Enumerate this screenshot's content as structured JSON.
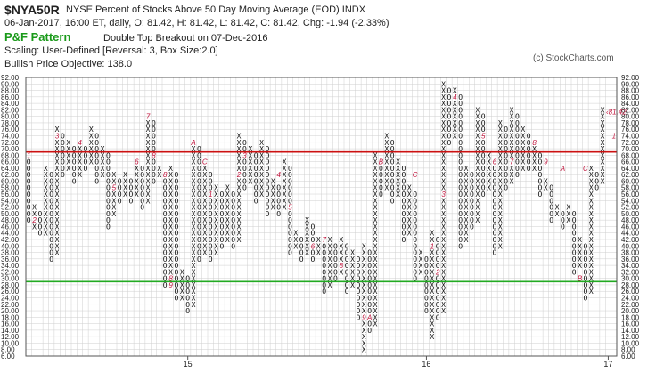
{
  "header": {
    "symbol": "$NYA50R",
    "description": "NYSE Percent of Stocks Above 50 Day Moving Average (EOD)  INDX",
    "stats": "06-Jan-2017, 16:00 ET, daily, O: 81.42, H: 81.42, L: 81.42, C: 81.42, Chg: -1.94 (-2.33%)",
    "pf_title": "P&F Pattern",
    "pattern": "Double Top Breakout on 07-Dec-2016",
    "scaling": "Scaling: User-Defined [Reversal: 3, Box Size:2.0]",
    "objective": "Bullish Price Objective: 138.0",
    "copyright": "(c) StockCharts.com"
  },
  "chart_data": {
    "type": "point-and-figure",
    "box_size": 2.0,
    "reversal": 3,
    "ylim": [
      6,
      92
    ],
    "yticks": [
      "6.00",
      "8.00",
      "10.00",
      "12.00",
      "14.00",
      "16.00",
      "18.00",
      "20.00",
      "22.00",
      "24.00",
      "26.00",
      "28.00",
      "30.00",
      "32.00",
      "34.00",
      "36.00",
      "38.00",
      "40.00",
      "42.00",
      "44.00",
      "46.00",
      "48.00",
      "50.00",
      "52.00",
      "54.00",
      "56.00",
      "58.00",
      "60.00",
      "62.00",
      "64.00",
      "66.00",
      "68.00",
      "70.00",
      "72.00",
      "74.00",
      "76.00",
      "78.00",
      "80.00",
      "82.00",
      "84.00",
      "86.00",
      "88.00",
      "90.00",
      "92.00"
    ],
    "x_labels": [
      {
        "label": "15",
        "column": 28
      },
      {
        "label": "16",
        "column": 70
      },
      {
        "label": "17",
        "column": 102
      }
    ],
    "num_columns": 104,
    "reference_lines": [
      {
        "value": 69,
        "color": "#cc1111"
      },
      {
        "value": 29,
        "color": "#22aa22"
      }
    ],
    "last_price": {
      "value": 81.42,
      "label": "81.42"
    },
    "columns": [
      {
        "type": "O",
        "high": 68,
        "low": 48
      },
      {
        "type": "X",
        "high": 52,
        "low": 46
      },
      {
        "type": "O",
        "high": 50,
        "low": 44
      },
      {
        "type": "X",
        "high": 64,
        "low": 44
      },
      {
        "type": "O",
        "high": 62,
        "low": 36
      },
      {
        "type": "X",
        "high": 76,
        "low": 38
      },
      {
        "type": "O",
        "high": 74,
        "low": 62
      },
      {
        "type": "X",
        "high": 72,
        "low": 64
      },
      {
        "type": "O",
        "high": 70,
        "low": 60
      },
      {
        "type": "X",
        "high": 72,
        "low": 62
      },
      {
        "type": "O",
        "high": 70,
        "low": 64
      },
      {
        "type": "X",
        "high": 76,
        "low": 66
      },
      {
        "type": "O",
        "high": 74,
        "low": 60
      },
      {
        "type": "X",
        "high": 70,
        "low": 62
      },
      {
        "type": "O",
        "high": 68,
        "low": 46
      },
      {
        "type": "X",
        "high": 62,
        "low": 50
      },
      {
        "type": "O",
        "high": 60,
        "low": 54
      },
      {
        "type": "X",
        "high": 62,
        "low": 56
      },
      {
        "type": "O",
        "high": 60,
        "low": 54
      },
      {
        "type": "X",
        "high": 66,
        "low": 56
      },
      {
        "type": "O",
        "high": 64,
        "low": 52
      },
      {
        "type": "X",
        "high": 80,
        "low": 54
      },
      {
        "type": "O",
        "high": 78,
        "low": 60
      },
      {
        "type": "X",
        "high": 64,
        "low": 62
      },
      {
        "type": "O",
        "high": 62,
        "low": 28
      },
      {
        "type": "X",
        "high": 64,
        "low": 30
      },
      {
        "type": "O",
        "high": 62,
        "low": 24
      },
      {
        "type": "X",
        "high": 32,
        "low": 24
      },
      {
        "type": "O",
        "high": 30,
        "low": 20
      },
      {
        "type": "X",
        "high": 72,
        "low": 22
      },
      {
        "type": "O",
        "high": 70,
        "low": 36
      },
      {
        "type": "X",
        "high": 64,
        "low": 38
      },
      {
        "type": "O",
        "high": 62,
        "low": 36
      },
      {
        "type": "X",
        "high": 58,
        "low": 38
      },
      {
        "type": "O",
        "high": 56,
        "low": 40
      },
      {
        "type": "X",
        "high": 58,
        "low": 42
      },
      {
        "type": "O",
        "high": 56,
        "low": 40
      },
      {
        "type": "X",
        "high": 74,
        "low": 42
      },
      {
        "type": "O",
        "high": 72,
        "low": 58
      },
      {
        "type": "X",
        "high": 70,
        "low": 60
      },
      {
        "type": "O",
        "high": 68,
        "low": 54
      },
      {
        "type": "X",
        "high": 72,
        "low": 56
      },
      {
        "type": "O",
        "high": 70,
        "low": 50
      },
      {
        "type": "X",
        "high": 60,
        "low": 52
      },
      {
        "type": "O",
        "high": 58,
        "low": 50
      },
      {
        "type": "X",
        "high": 66,
        "low": 52
      },
      {
        "type": "O",
        "high": 64,
        "low": 38
      },
      {
        "type": "X",
        "high": 44,
        "low": 40
      },
      {
        "type": "O",
        "high": 42,
        "low": 36
      },
      {
        "type": "X",
        "high": 48,
        "low": 38
      },
      {
        "type": "O",
        "high": 46,
        "low": 36
      },
      {
        "type": "X",
        "high": 42,
        "low": 38
      },
      {
        "type": "O",
        "high": 40,
        "low": 26
      },
      {
        "type": "X",
        "high": 42,
        "low": 28
      },
      {
        "type": "O",
        "high": 40,
        "low": 30
      },
      {
        "type": "X",
        "high": 42,
        "low": 32
      },
      {
        "type": "O",
        "high": 40,
        "low": 26
      },
      {
        "type": "X",
        "high": 38,
        "low": 28
      },
      {
        "type": "O",
        "high": 36,
        "low": 18
      },
      {
        "type": "X",
        "high": 40,
        "low": 8
      },
      {
        "type": "O",
        "high": 38,
        "low": 14
      },
      {
        "type": "X",
        "high": 68,
        "low": 16
      },
      {
        "type": "O",
        "high": 66,
        "low": 56
      },
      {
        "type": "X",
        "high": 74,
        "low": 58
      },
      {
        "type": "O",
        "high": 72,
        "low": 54
      },
      {
        "type": "X",
        "high": 66,
        "low": 56
      },
      {
        "type": "O",
        "high": 64,
        "low": 42
      },
      {
        "type": "X",
        "high": 58,
        "low": 44
      },
      {
        "type": "O",
        "high": 56,
        "low": 30
      },
      {
        "type": "X",
        "high": 38,
        "low": 32
      },
      {
        "type": "O",
        "high": 36,
        "low": 20
      },
      {
        "type": "X",
        "high": 44,
        "low": 12
      },
      {
        "type": "O",
        "high": 42,
        "low": 18
      },
      {
        "type": "X",
        "high": 90,
        "low": 20
      },
      {
        "type": "O",
        "high": 88,
        "low": 72
      },
      {
        "type": "X",
        "high": 88,
        "low": 74
      },
      {
        "type": "O",
        "high": 86,
        "low": 40
      },
      {
        "type": "X",
        "high": 64,
        "low": 42
      },
      {
        "type": "O",
        "high": 62,
        "low": 46
      },
      {
        "type": "X",
        "high": 82,
        "low": 48
      },
      {
        "type": "O",
        "high": 80,
        "low": 56
      },
      {
        "type": "X",
        "high": 68,
        "low": 58
      },
      {
        "type": "O",
        "high": 66,
        "low": 38
      },
      {
        "type": "X",
        "high": 78,
        "low": 40
      },
      {
        "type": "O",
        "high": 76,
        "low": 58
      },
      {
        "type": "X",
        "high": 82,
        "low": 60
      },
      {
        "type": "O",
        "high": 80,
        "low": 62
      },
      {
        "type": "X",
        "high": 76,
        "low": 64
      },
      {
        "type": "O",
        "high": 74,
        "low": 64
      },
      {
        "type": "X",
        "high": 70,
        "low": 64
      },
      {
        "type": "O",
        "high": 68,
        "low": 56
      },
      {
        "type": "X",
        "high": 60,
        "low": 58
      },
      {
        "type": "O",
        "high": 58,
        "low": 48
      },
      {
        "type": "X",
        "high": 52,
        "low": 50
      },
      {
        "type": "O",
        "high": 50,
        "low": 46
      },
      {
        "type": "X",
        "high": 52,
        "low": 48
      },
      {
        "type": "O",
        "high": 50,
        "low": 32
      },
      {
        "type": "X",
        "high": 42,
        "low": 34
      },
      {
        "type": "O",
        "high": 40,
        "low": 24
      },
      {
        "type": "X",
        "high": 64,
        "low": 26
      },
      {
        "type": "O",
        "high": 62,
        "low": 58
      },
      {
        "type": "X",
        "high": 82,
        "low": 60
      }
    ],
    "month_markers": [
      {
        "label": "1",
        "column": 0,
        "value": 68
      },
      {
        "label": "2",
        "column": 1,
        "value": 48
      },
      {
        "label": "3",
        "column": 5,
        "value": 74
      },
      {
        "label": "4",
        "column": 9,
        "value": 72
      },
      {
        "label": "5",
        "column": 15,
        "value": 58
      },
      {
        "label": "6",
        "column": 19,
        "value": 66
      },
      {
        "label": "7",
        "column": 21,
        "value": 80
      },
      {
        "label": "8",
        "column": 22,
        "value": 68
      },
      {
        "label": "8",
        "column": 24,
        "value": 62
      },
      {
        "label": "8",
        "column": 25,
        "value": 30
      },
      {
        "label": "9",
        "column": 25,
        "value": 28
      },
      {
        "label": "A",
        "column": 29,
        "value": 72
      },
      {
        "label": "C",
        "column": 31,
        "value": 66
      },
      {
        "label": "1",
        "column": 32,
        "value": 56
      },
      {
        "label": "2",
        "column": 37,
        "value": 62
      },
      {
        "label": "3",
        "column": 38,
        "value": 68
      },
      {
        "label": "4",
        "column": 44,
        "value": 62
      },
      {
        "label": "5",
        "column": 46,
        "value": 52
      },
      {
        "label": "6",
        "column": 50,
        "value": 40
      },
      {
        "label": "7",
        "column": 52,
        "value": 42
      },
      {
        "label": "8",
        "column": 55,
        "value": 34
      },
      {
        "label": "9",
        "column": 59,
        "value": 18
      },
      {
        "label": "A",
        "column": 60,
        "value": 18
      },
      {
        "label": "B",
        "column": 62,
        "value": 66
      },
      {
        "label": "C",
        "column": 68,
        "value": 62
      },
      {
        "label": "1",
        "column": 71,
        "value": 40
      },
      {
        "label": "2",
        "column": 72,
        "value": 32
      },
      {
        "label": "3",
        "column": 73,
        "value": 56
      },
      {
        "label": "4",
        "column": 75,
        "value": 86
      },
      {
        "label": "5",
        "column": 80,
        "value": 74
      },
      {
        "label": "6",
        "column": 82,
        "value": 66
      },
      {
        "label": "7",
        "column": 85,
        "value": 66
      },
      {
        "label": "8",
        "column": 89,
        "value": 72
      },
      {
        "label": "9",
        "column": 91,
        "value": 66
      },
      {
        "label": "A",
        "column": 94,
        "value": 64
      },
      {
        "label": "B",
        "column": 97,
        "value": 30
      },
      {
        "label": "C",
        "column": 98,
        "value": 64
      },
      {
        "label": "1",
        "column": 103,
        "value": 74
      }
    ]
  }
}
